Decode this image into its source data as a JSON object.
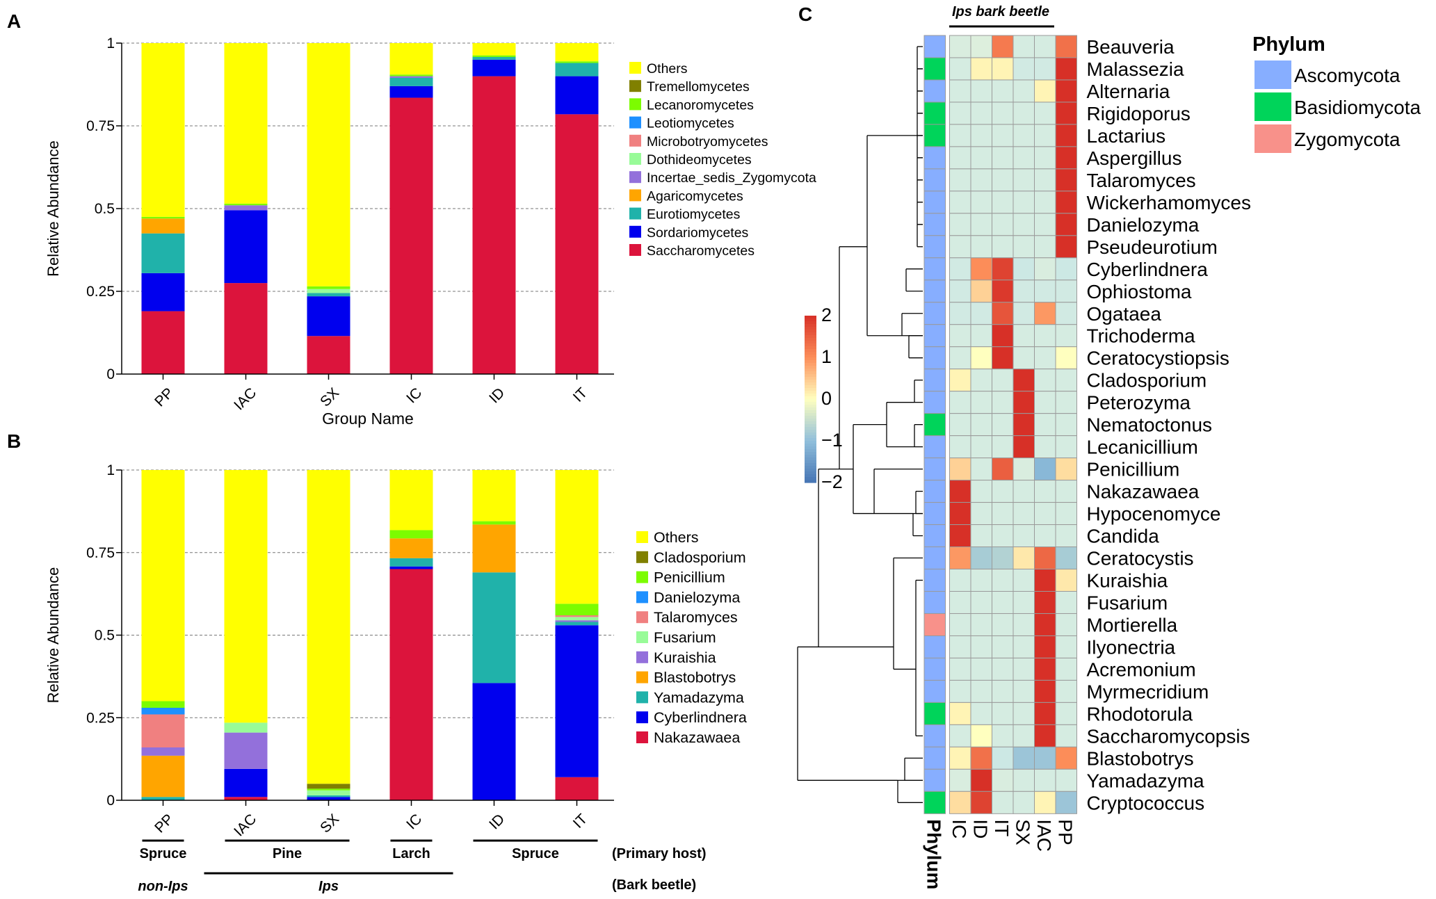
{
  "chart_data": [
    {
      "panel": "A",
      "type": "bar",
      "stacked": true,
      "xlabel": "Group Name",
      "ylabel": "Relative Abundance",
      "ylim": [
        0,
        1
      ],
      "yticks": [
        "0",
        "0.25",
        "0.5",
        "0.75",
        "1"
      ],
      "categories": [
        "PP",
        "IAC",
        "SX",
        "IC",
        "ID",
        "IT"
      ],
      "legend_position": "right",
      "series": [
        {
          "name": "Saccharomycetes",
          "color": "#DC143C",
          "values": [
            0.19,
            0.275,
            0.115,
            0.835,
            0.9,
            0.785
          ]
        },
        {
          "name": "Sordariomycetes",
          "color": "#0000EE",
          "values": [
            0.115,
            0.22,
            0.12,
            0.035,
            0.05,
            0.115
          ]
        },
        {
          "name": "Eurotiomycetes",
          "color": "#20B2AA",
          "values": [
            0.12,
            0.0,
            0.01,
            0.025,
            0.008,
            0.04
          ]
        },
        {
          "name": "Agaricomycetes",
          "color": "#FFA500",
          "values": [
            0.045,
            0.0,
            0.0,
            0.0,
            0.0,
            0.0
          ]
        },
        {
          "name": "Incertae_sedis_Zygomycota",
          "color": "#9370DB",
          "values": [
            0.0,
            0.015,
            0.0,
            0.005,
            0.0,
            0.0
          ]
        },
        {
          "name": "Dothideomycetes",
          "color": "#98FB98",
          "values": [
            0.0,
            0.0,
            0.012,
            0.0,
            0.0,
            0.0
          ]
        },
        {
          "name": "Microbotryomycetes",
          "color": "#F08080",
          "values": [
            0.0,
            0.0,
            0.0,
            0.0,
            0.0,
            0.0
          ]
        },
        {
          "name": "Leotiomycetes",
          "color": "#1E90FF",
          "values": [
            0.0,
            0.0,
            0.0,
            0.0,
            0.0,
            0.0
          ]
        },
        {
          "name": "Lecanoromycetes",
          "color": "#7CFC00",
          "values": [
            0.005,
            0.005,
            0.008,
            0.005,
            0.005,
            0.005
          ]
        },
        {
          "name": "Tremellomycetes",
          "color": "#808000",
          "values": [
            0.0,
            0.0,
            0.0,
            0.0,
            0.0,
            0.0
          ]
        },
        {
          "name": "Others",
          "color": "#FFFF00",
          "values": [
            0.525,
            0.485,
            0.735,
            0.095,
            0.037,
            0.055
          ]
        }
      ]
    },
    {
      "panel": "B",
      "type": "bar",
      "stacked": true,
      "xlabel": "",
      "ylabel": "Relative Abundance",
      "ylim": [
        0,
        1
      ],
      "yticks": [
        "0",
        "0.25",
        "0.5",
        "0.75",
        "1"
      ],
      "categories": [
        "PP",
        "IAC",
        "SX",
        "IC",
        "ID",
        "IT"
      ],
      "legend_position": "right",
      "series": [
        {
          "name": "Nakazawaea",
          "color": "#DC143C",
          "values": [
            0.0,
            0.01,
            0.0,
            0.7,
            0.0,
            0.07
          ]
        },
        {
          "name": "Cyberlindnera",
          "color": "#0000EE",
          "values": [
            0.0,
            0.085,
            0.01,
            0.008,
            0.355,
            0.46
          ]
        },
        {
          "name": "Yamadazyma",
          "color": "#20B2AA",
          "values": [
            0.01,
            0.0,
            0.005,
            0.025,
            0.335,
            0.01
          ]
        },
        {
          "name": "Blastobotrys",
          "color": "#FFA500",
          "values": [
            0.125,
            0.0,
            0.0,
            0.06,
            0.145,
            0.0
          ]
        },
        {
          "name": "Kuraishia",
          "color": "#9370DB",
          "values": [
            0.025,
            0.11,
            0.0,
            0.0,
            0.0,
            0.005
          ]
        },
        {
          "name": "Fusarium",
          "color": "#98FB98",
          "values": [
            0.0,
            0.03,
            0.015,
            0.0,
            0.0,
            0.01
          ]
        },
        {
          "name": "Talaromyces",
          "color": "#F08080",
          "values": [
            0.1,
            0.0,
            0.0,
            0.0,
            0.0,
            0.005
          ]
        },
        {
          "name": "Danielozyma",
          "color": "#1E90FF",
          "values": [
            0.02,
            0.0,
            0.0,
            0.0,
            0.0,
            0.0
          ]
        },
        {
          "name": "Penicillium",
          "color": "#7CFC00",
          "values": [
            0.02,
            0.0,
            0.005,
            0.025,
            0.01,
            0.035
          ]
        },
        {
          "name": "Cladosporium",
          "color": "#808000",
          "values": [
            0.0,
            0.0,
            0.015,
            0.0,
            0.0,
            0.0
          ]
        },
        {
          "name": "Others",
          "color": "#FFFF00",
          "values": [
            0.7,
            0.765,
            0.95,
            0.182,
            0.155,
            0.405
          ]
        }
      ],
      "annotations": {
        "primary_host": [
          {
            "label": "Spruce",
            "groups": [
              "PP"
            ]
          },
          {
            "label": "Pine",
            "groups": [
              "IAC",
              "SX"
            ]
          },
          {
            "label": "Larch",
            "groups": [
              "IC"
            ]
          },
          {
            "label": "Spruce",
            "groups": [
              "ID",
              "IT"
            ]
          }
        ],
        "primary_host_title": "(Primary host)",
        "bark_beetle": [
          {
            "label": "non-Ips",
            "groups": [
              "PP"
            ],
            "line": false
          },
          {
            "label": "Ips",
            "groups": [
              "IAC",
              "SX",
              "IC"
            ],
            "line": true
          }
        ],
        "bark_beetle_title": "(Bark beetle)"
      }
    },
    {
      "panel": "C",
      "type": "heatmap",
      "top_label": "Ips  bark beetle",
      "columns": [
        "IC",
        "ID",
        "IT",
        "SX",
        "IAC",
        "PP"
      ],
      "phylum_column_label": "Phylum",
      "colorbar": {
        "min": -2,
        "max": 2,
        "ticks": [
          "2",
          "1",
          "0",
          "−1",
          "−2"
        ]
      },
      "legend_title": "Phylum",
      "phyla": [
        {
          "name": "Ascomycota",
          "color": "#87AEFF"
        },
        {
          "name": "Basidiomycota",
          "color": "#00D45A"
        },
        {
          "name": "Zygomycota",
          "color": "#F8918A"
        }
      ],
      "rows": [
        {
          "name": "Beauveria",
          "phylum": "Ascomycota",
          "values": [
            -0.3,
            -0.2,
            1.2,
            -0.4,
            -0.4,
            1.3
          ]
        },
        {
          "name": "Malassezia",
          "phylum": "Basidiomycota",
          "values": [
            -0.4,
            0.1,
            0.1,
            -0.5,
            -0.5,
            2.0
          ]
        },
        {
          "name": "Alternaria",
          "phylum": "Ascomycota",
          "values": [
            -0.4,
            -0.4,
            -0.4,
            -0.4,
            0.1,
            2.0
          ]
        },
        {
          "name": "Rigidoporus",
          "phylum": "Basidiomycota",
          "values": [
            -0.4,
            -0.4,
            -0.4,
            -0.4,
            -0.4,
            2.0
          ]
        },
        {
          "name": "Lactarius",
          "phylum": "Basidiomycota",
          "values": [
            -0.4,
            -0.4,
            -0.4,
            -0.4,
            -0.4,
            2.0
          ]
        },
        {
          "name": "Aspergillus",
          "phylum": "Ascomycota",
          "values": [
            -0.4,
            -0.4,
            -0.4,
            -0.4,
            -0.4,
            2.0
          ]
        },
        {
          "name": "Talaromyces",
          "phylum": "Ascomycota",
          "values": [
            -0.4,
            -0.4,
            -0.4,
            -0.4,
            -0.4,
            2.0
          ]
        },
        {
          "name": "Wickerhamomyces",
          "phylum": "Ascomycota",
          "values": [
            -0.4,
            -0.4,
            -0.4,
            -0.4,
            -0.4,
            2.0
          ]
        },
        {
          "name": "Danielozyma",
          "phylum": "Ascomycota",
          "values": [
            -0.4,
            -0.4,
            -0.4,
            -0.4,
            -0.4,
            2.0
          ]
        },
        {
          "name": "Pseudeurotium",
          "phylum": "Ascomycota",
          "values": [
            -0.4,
            -0.4,
            -0.4,
            -0.4,
            -0.4,
            2.0
          ]
        },
        {
          "name": "Cyberlindnera",
          "phylum": "Ascomycota",
          "values": [
            -0.5,
            1.0,
            1.8,
            -0.6,
            -0.3,
            -0.6
          ]
        },
        {
          "name": "Ophiostoma",
          "phylum": "Ascomycota",
          "values": [
            -0.5,
            0.4,
            1.9,
            -0.5,
            -0.5,
            -0.5
          ]
        },
        {
          "name": "Ogataea",
          "phylum": "Ascomycota",
          "values": [
            -0.5,
            -0.5,
            1.6,
            -0.5,
            0.9,
            -0.5
          ]
        },
        {
          "name": "Trichoderma",
          "phylum": "Ascomycota",
          "values": [
            -0.4,
            -0.4,
            2.0,
            -0.4,
            -0.4,
            -0.4
          ]
        },
        {
          "name": "Ceratocystiopsis",
          "phylum": "Ascomycota",
          "values": [
            -0.4,
            0.0,
            2.0,
            -0.4,
            -0.4,
            0.0
          ]
        },
        {
          "name": "Cladosporium",
          "phylum": "Ascomycota",
          "values": [
            0.1,
            -0.4,
            -0.4,
            2.0,
            -0.4,
            -0.4
          ]
        },
        {
          "name": "Peterozyma",
          "phylum": "Ascomycota",
          "values": [
            -0.4,
            -0.4,
            -0.4,
            2.0,
            -0.4,
            -0.4
          ]
        },
        {
          "name": "Nematoctonus",
          "phylum": "Basidiomycota",
          "values": [
            -0.4,
            -0.4,
            -0.4,
            2.0,
            -0.4,
            -0.4
          ]
        },
        {
          "name": "Lecanicillium",
          "phylum": "Ascomycota",
          "values": [
            -0.4,
            -0.4,
            -0.4,
            2.0,
            -0.4,
            -0.4
          ]
        },
        {
          "name": "Penicillium",
          "phylum": "Ascomycota",
          "values": [
            0.4,
            -0.4,
            1.5,
            -0.3,
            -1.1,
            0.3
          ]
        },
        {
          "name": "Nakazawaea",
          "phylum": "Ascomycota",
          "values": [
            2.0,
            -0.4,
            -0.4,
            -0.4,
            -0.4,
            -0.4
          ]
        },
        {
          "name": "Hypocenomyce",
          "phylum": "Ascomycota",
          "values": [
            2.0,
            -0.4,
            -0.4,
            -0.4,
            -0.4,
            -0.4
          ]
        },
        {
          "name": "Candida",
          "phylum": "Ascomycota",
          "values": [
            2.0,
            -0.4,
            -0.4,
            -0.4,
            -0.4,
            -0.4
          ]
        },
        {
          "name": "Ceratocystis",
          "phylum": "Ascomycota",
          "values": [
            0.9,
            -0.8,
            -0.7,
            0.2,
            1.4,
            -0.8
          ]
        },
        {
          "name": "Kuraishia",
          "phylum": "Ascomycota",
          "values": [
            -0.4,
            -0.4,
            -0.4,
            -0.4,
            2.0,
            0.2
          ]
        },
        {
          "name": "Fusarium",
          "phylum": "Ascomycota",
          "values": [
            -0.4,
            -0.4,
            -0.4,
            -0.4,
            2.0,
            -0.4
          ]
        },
        {
          "name": "Mortierella",
          "phylum": "Zygomycota",
          "values": [
            -0.4,
            -0.4,
            -0.4,
            -0.4,
            2.0,
            -0.4
          ]
        },
        {
          "name": "Ilyonectria",
          "phylum": "Ascomycota",
          "values": [
            -0.4,
            -0.4,
            -0.4,
            -0.4,
            2.0,
            -0.4
          ]
        },
        {
          "name": "Acremonium",
          "phylum": "Ascomycota",
          "values": [
            -0.4,
            -0.4,
            -0.4,
            -0.4,
            2.0,
            -0.4
          ]
        },
        {
          "name": "Myrmecridium",
          "phylum": "Ascomycota",
          "values": [
            -0.4,
            -0.4,
            -0.4,
            -0.4,
            2.0,
            -0.4
          ]
        },
        {
          "name": "Rhodotorula",
          "phylum": "Basidiomycota",
          "values": [
            0.1,
            -0.4,
            -0.4,
            -0.4,
            2.0,
            -0.4
          ]
        },
        {
          "name": "Saccharomycopsis",
          "phylum": "Ascomycota",
          "values": [
            -0.4,
            0.0,
            -0.4,
            -0.4,
            2.0,
            -0.4
          ]
        },
        {
          "name": "Blastobotrys",
          "phylum": "Ascomycota",
          "values": [
            0.1,
            1.3,
            -0.6,
            -0.9,
            -0.9,
            1.0
          ]
        },
        {
          "name": "Yamadazyma",
          "phylum": "Ascomycota",
          "values": [
            -0.3,
            2.0,
            -0.3,
            -0.4,
            -0.4,
            -0.4
          ]
        },
        {
          "name": "Cryptococcus",
          "phylum": "Basidiomycota",
          "values": [
            0.3,
            1.8,
            -0.4,
            -0.4,
            0.1,
            -0.9
          ]
        }
      ]
    }
  ],
  "panel_labels": [
    "A",
    "B",
    "C"
  ]
}
